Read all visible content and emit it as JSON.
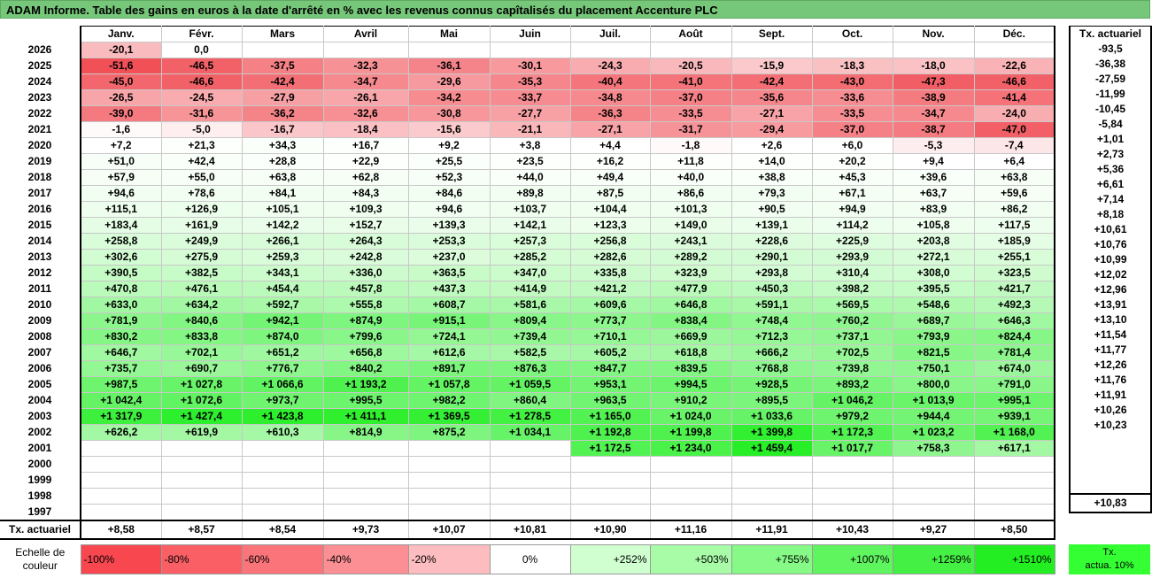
{
  "title": "ADAM Informe. Table des gains en euros à la date d'arrêté en % avec les revenus connus capîtalisés du placement Accenture PLC",
  "months": [
    "Janv.",
    "Févr.",
    "Mars",
    "Avril",
    "Mai",
    "Juin",
    "Juil.",
    "Août",
    "Sept.",
    "Oct.",
    "Nov.",
    "Déc."
  ],
  "side_header": "Tx. actuariel",
  "rows": [
    {
      "year": "2026",
      "cells": [
        "-20,1",
        "0,0",
        "",
        "",
        "",
        "",
        "",
        "",
        "",
        "",
        "",
        ""
      ],
      "tx": "-93,5"
    },
    {
      "year": "2025",
      "cells": [
        "-51,6",
        "-46,5",
        "-37,5",
        "-32,3",
        "-36,1",
        "-30,1",
        "-24,3",
        "-20,5",
        "-15,9",
        "-18,3",
        "-18,0",
        "-22,6"
      ],
      "tx": "-36,38"
    },
    {
      "year": "2024",
      "cells": [
        "-45,0",
        "-46,6",
        "-42,4",
        "-34,7",
        "-29,6",
        "-35,3",
        "-40,4",
        "-41,0",
        "-42,4",
        "-43,0",
        "-47,3",
        "-46,6"
      ],
      "tx": "-27,59"
    },
    {
      "year": "2023",
      "cells": [
        "-26,5",
        "-24,5",
        "-27,9",
        "-26,1",
        "-34,2",
        "-33,7",
        "-34,8",
        "-37,0",
        "-35,6",
        "-33,6",
        "-38,9",
        "-41,4"
      ],
      "tx": "-11,99"
    },
    {
      "year": "2022",
      "cells": [
        "-39,0",
        "-31,6",
        "-36,2",
        "-32,6",
        "-30,8",
        "-27,7",
        "-36,3",
        "-33,5",
        "-27,1",
        "-33,5",
        "-34,7",
        "-24,0"
      ],
      "tx": "-10,45"
    },
    {
      "year": "2021",
      "cells": [
        "-1,6",
        "-5,0",
        "-16,7",
        "-18,4",
        "-15,6",
        "-21,1",
        "-27,1",
        "-31,7",
        "-29,4",
        "-37,0",
        "-38,7",
        "-47,0"
      ],
      "tx": "-5,84"
    },
    {
      "year": "2020",
      "cells": [
        "+7,2",
        "+21,3",
        "+34,3",
        "+16,7",
        "+9,2",
        "+3,8",
        "+4,4",
        "-1,8",
        "+2,6",
        "+6,0",
        "-5,3",
        "-7,4"
      ],
      "tx": "+1,01"
    },
    {
      "year": "2019",
      "cells": [
        "+51,0",
        "+42,4",
        "+28,8",
        "+22,9",
        "+25,5",
        "+23,5",
        "+16,2",
        "+11,8",
        "+14,0",
        "+20,2",
        "+9,4",
        "+6,4"
      ],
      "tx": "+2,73"
    },
    {
      "year": "2018",
      "cells": [
        "+57,9",
        "+55,0",
        "+63,8",
        "+62,8",
        "+52,3",
        "+44,0",
        "+49,4",
        "+40,0",
        "+38,8",
        "+45,3",
        "+39,6",
        "+63,8"
      ],
      "tx": "+5,36"
    },
    {
      "year": "2017",
      "cells": [
        "+94,6",
        "+78,6",
        "+84,1",
        "+84,3",
        "+84,6",
        "+89,8",
        "+87,5",
        "+86,6",
        "+79,3",
        "+67,1",
        "+63,7",
        "+59,6"
      ],
      "tx": "+6,61"
    },
    {
      "year": "2016",
      "cells": [
        "+115,1",
        "+126,9",
        "+105,1",
        "+109,3",
        "+94,6",
        "+103,7",
        "+104,4",
        "+101,3",
        "+90,5",
        "+94,9",
        "+83,9",
        "+86,2"
      ],
      "tx": "+7,14"
    },
    {
      "year": "2015",
      "cells": [
        "+183,4",
        "+161,9",
        "+142,2",
        "+152,7",
        "+139,3",
        "+142,1",
        "+123,3",
        "+149,0",
        "+139,1",
        "+114,2",
        "+105,8",
        "+117,5"
      ],
      "tx": "+8,18"
    },
    {
      "year": "2014",
      "cells": [
        "+258,8",
        "+249,9",
        "+266,1",
        "+264,3",
        "+253,3",
        "+257,3",
        "+256,8",
        "+243,1",
        "+228,6",
        "+225,9",
        "+203,8",
        "+185,9"
      ],
      "tx": "+10,61"
    },
    {
      "year": "2013",
      "cells": [
        "+302,6",
        "+275,9",
        "+259,3",
        "+242,8",
        "+237,0",
        "+285,2",
        "+282,6",
        "+289,2",
        "+290,1",
        "+293,9",
        "+272,1",
        "+255,1"
      ],
      "tx": "+10,76"
    },
    {
      "year": "2012",
      "cells": [
        "+390,5",
        "+382,5",
        "+343,1",
        "+336,0",
        "+363,5",
        "+347,0",
        "+335,8",
        "+323,9",
        "+293,8",
        "+310,4",
        "+308,0",
        "+323,5"
      ],
      "tx": "+10,99"
    },
    {
      "year": "2011",
      "cells": [
        "+470,8",
        "+476,1",
        "+454,4",
        "+457,8",
        "+437,3",
        "+414,9",
        "+421,2",
        "+477,9",
        "+450,3",
        "+398,2",
        "+395,5",
        "+421,7"
      ],
      "tx": "+12,02"
    },
    {
      "year": "2010",
      "cells": [
        "+633,0",
        "+634,2",
        "+592,7",
        "+555,8",
        "+608,7",
        "+581,6",
        "+609,6",
        "+646,8",
        "+591,1",
        "+569,5",
        "+548,6",
        "+492,3"
      ],
      "tx": "+12,96"
    },
    {
      "year": "2009",
      "cells": [
        "+781,9",
        "+840,6",
        "+942,1",
        "+874,9",
        "+915,1",
        "+809,4",
        "+773,7",
        "+838,4",
        "+748,4",
        "+760,2",
        "+689,7",
        "+646,3"
      ],
      "tx": "+13,91"
    },
    {
      "year": "2008",
      "cells": [
        "+830,2",
        "+833,8",
        "+874,0",
        "+799,6",
        "+724,1",
        "+739,4",
        "+710,1",
        "+669,9",
        "+712,3",
        "+737,1",
        "+793,9",
        "+824,4"
      ],
      "tx": "+13,10"
    },
    {
      "year": "2007",
      "cells": [
        "+646,7",
        "+702,1",
        "+651,2",
        "+656,8",
        "+612,6",
        "+582,5",
        "+605,2",
        "+618,8",
        "+666,2",
        "+702,5",
        "+821,5",
        "+781,4"
      ],
      "tx": "+11,54"
    },
    {
      "year": "2006",
      "cells": [
        "+735,7",
        "+690,7",
        "+776,7",
        "+840,2",
        "+891,7",
        "+876,3",
        "+847,7",
        "+839,5",
        "+768,8",
        "+739,8",
        "+750,1",
        "+674,0"
      ],
      "tx": "+11,77"
    },
    {
      "year": "2005",
      "cells": [
        "+987,5",
        "+1 027,8",
        "+1 066,6",
        "+1 193,2",
        "+1 057,8",
        "+1 059,5",
        "+953,1",
        "+994,5",
        "+928,5",
        "+893,2",
        "+800,0",
        "+791,0"
      ],
      "tx": "+12,26"
    },
    {
      "year": "2004",
      "cells": [
        "+1 042,4",
        "+1 072,6",
        "+973,7",
        "+995,5",
        "+982,2",
        "+860,4",
        "+963,5",
        "+910,2",
        "+895,5",
        "+1 046,2",
        "+1 013,9",
        "+995,1"
      ],
      "tx": "+11,76"
    },
    {
      "year": "2003",
      "cells": [
        "+1 317,9",
        "+1 427,4",
        "+1 423,8",
        "+1 411,1",
        "+1 369,5",
        "+1 278,5",
        "+1 165,0",
        "+1 024,0",
        "+1 033,6",
        "+979,2",
        "+944,4",
        "+939,1"
      ],
      "tx": "+11,91"
    },
    {
      "year": "2002",
      "cells": [
        "+626,2",
        "+619,9",
        "+610,3",
        "+814,9",
        "+875,2",
        "+1 034,1",
        "+1 192,8",
        "+1 199,8",
        "+1 399,8",
        "+1 172,3",
        "+1 023,2",
        "+1 168,0"
      ],
      "tx": "+10,26"
    },
    {
      "year": "2001",
      "cells": [
        "",
        "",
        "",
        "",
        "",
        "",
        "+1 172,5",
        "+1 234,0",
        "+1 459,4",
        "+1 017,7",
        "+758,3",
        "+617,1"
      ],
      "tx": "+10,23"
    },
    {
      "year": "2000",
      "cells": [
        "",
        "",
        "",
        "",
        "",
        "",
        "",
        "",
        "",
        "",
        "",
        ""
      ],
      "tx": ""
    },
    {
      "year": "1999",
      "cells": [
        "",
        "",
        "",
        "",
        "",
        "",
        "",
        "",
        "",
        "",
        "",
        ""
      ],
      "tx": ""
    },
    {
      "year": "1998",
      "cells": [
        "",
        "",
        "",
        "",
        "",
        "",
        "",
        "",
        "",
        "",
        "",
        ""
      ],
      "tx": ""
    },
    {
      "year": "1997",
      "cells": [
        "",
        "",
        "",
        "",
        "",
        "",
        "",
        "",
        "",
        "",
        "",
        ""
      ],
      "tx": ""
    }
  ],
  "tx_row": {
    "label": "Tx. actuariel",
    "cells": [
      "+8,58",
      "+8,57",
      "+8,54",
      "+9,73",
      "+10,07",
      "+10,81",
      "+10,90",
      "+11,16",
      "+11,91",
      "+10,43",
      "+9,27",
      "+8,50"
    ],
    "tx": "+10,83"
  },
  "scale": {
    "label": "Echelle de couleur",
    "stops": [
      {
        "text": "-100%",
        "color": "#f8474f",
        "align": "left"
      },
      {
        "text": "-80%",
        "color": "#fa5f66",
        "align": "left"
      },
      {
        "text": "-60%",
        "color": "#fa747a",
        "align": "left"
      },
      {
        "text": "-40%",
        "color": "#fb8f94",
        "align": "left"
      },
      {
        "text": "-20%",
        "color": "#fdbdc0",
        "align": "left"
      },
      {
        "text": "0%",
        "color": "#ffffff",
        "align": "center"
      },
      {
        "text": "+252%",
        "color": "#d0ffd0",
        "align": "right"
      },
      {
        "text": "+503%",
        "color": "#a8fca8",
        "align": "right"
      },
      {
        "text": "+755%",
        "color": "#86f986",
        "align": "right"
      },
      {
        "text": "+1007%",
        "color": "#5ff55f",
        "align": "right"
      },
      {
        "text": "+1259%",
        "color": "#44f044",
        "align": "right"
      },
      {
        "text": "+1510%",
        "color": "#22ee22",
        "align": "right"
      }
    ],
    "right_label_1": "Tx.",
    "right_label_2": "actua. 10%"
  }
}
